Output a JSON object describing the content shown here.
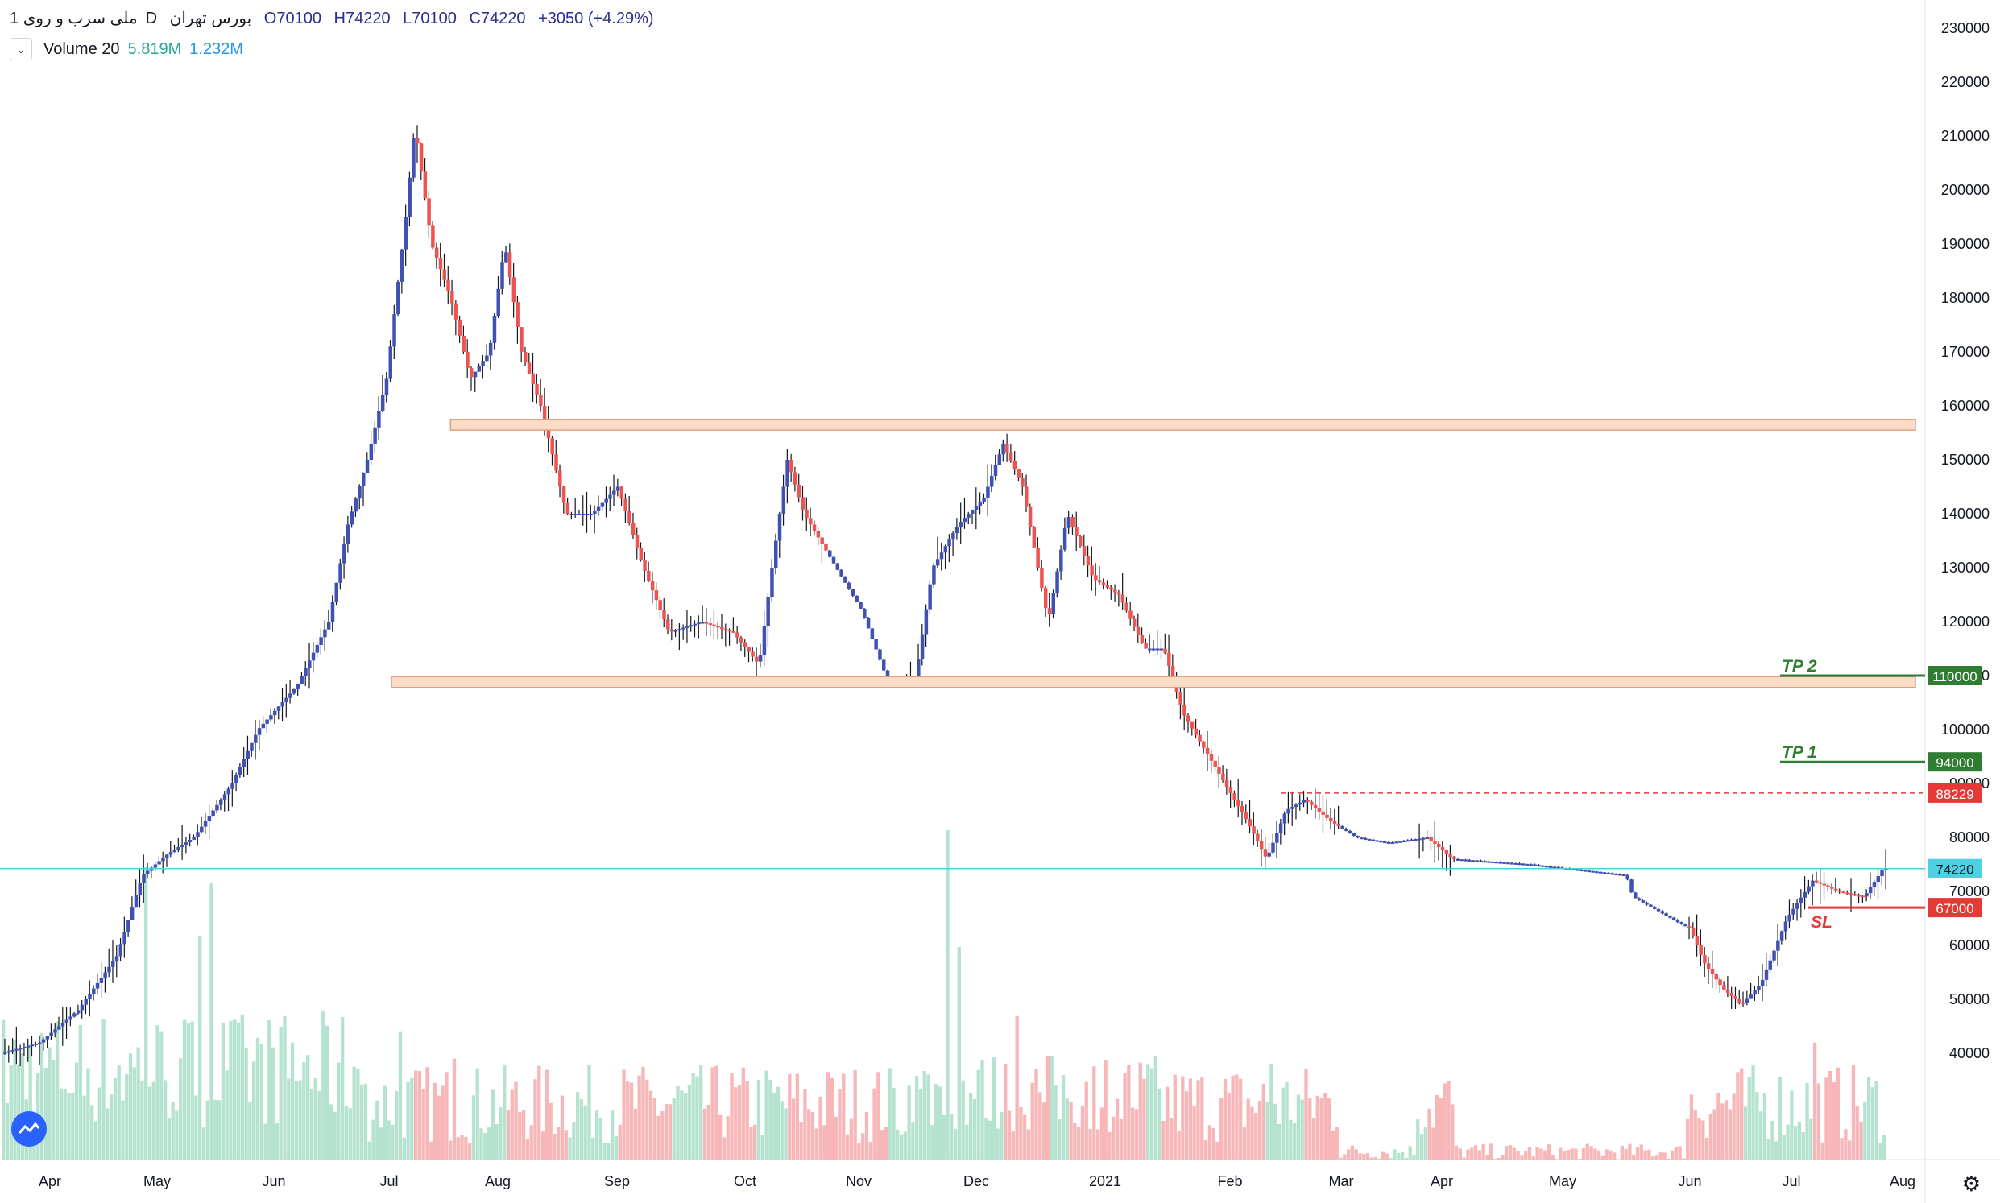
{
  "header": {
    "symbol": "ملی سرب و روی",
    "interval": "1D",
    "exchange": "بورس تهران",
    "open": "O70100",
    "high": "H74220",
    "low": "L70100",
    "close": "C74220",
    "change": "+3050 (+4.29%)",
    "volume_label": "Volume 20",
    "volume_value": "5.819M",
    "volume_ma": "1.232M"
  },
  "colors": {
    "up": "#ef5350",
    "down": "#3f51b5",
    "vol_up": "#f7b6b8",
    "vol_down": "#b5e3cf",
    "zone_fill": "#fbdcc6",
    "zone_stroke": "#e0a080",
    "tp": "#2e7d32",
    "sl": "#e53935",
    "current": "#4dd0e1"
  },
  "icons": {
    "collapse": "chevron-down-icon",
    "logo": "tradingview-logo-icon",
    "settings": "gear-icon"
  },
  "chart_data": {
    "type": "candlestick",
    "ylim": [
      37000,
      234000
    ],
    "y_ticks": [
      40000,
      50000,
      60000,
      70000,
      80000,
      90000,
      100000,
      110000,
      120000,
      130000,
      140000,
      150000,
      160000,
      170000,
      180000,
      190000,
      200000,
      210000,
      220000,
      230000
    ],
    "x_ticks": [
      "Apr",
      "May",
      "Jun",
      "Jul",
      "Aug",
      "Sep",
      "Oct",
      "Nov",
      "Dec",
      "2021",
      "Feb",
      "Mar",
      "Apr",
      "May",
      "Jun",
      "Jul",
      "Aug"
    ],
    "price_path": [
      [
        0,
        40000
      ],
      [
        30,
        42000
      ],
      [
        60,
        48000
      ],
      [
        90,
        58000
      ],
      [
        110,
        73000
      ],
      [
        130,
        77000
      ],
      [
        150,
        80000
      ],
      [
        180,
        90000
      ],
      [
        200,
        100000
      ],
      [
        230,
        108000
      ],
      [
        255,
        120000
      ],
      [
        270,
        138000
      ],
      [
        285,
        150000
      ],
      [
        300,
        165000
      ],
      [
        315,
        195000
      ],
      [
        322,
        212000
      ],
      [
        335,
        190000
      ],
      [
        350,
        180000
      ],
      [
        365,
        165000
      ],
      [
        380,
        170000
      ],
      [
        392,
        190000
      ],
      [
        405,
        170000
      ],
      [
        420,
        160000
      ],
      [
        440,
        140000
      ],
      [
        460,
        140000
      ],
      [
        480,
        145000
      ],
      [
        500,
        130000
      ],
      [
        520,
        118000
      ],
      [
        545,
        120000
      ],
      [
        570,
        118000
      ],
      [
        590,
        112000
      ],
      [
        600,
        130000
      ],
      [
        612,
        150000
      ],
      [
        625,
        140000
      ],
      [
        645,
        132000
      ],
      [
        670,
        122000
      ],
      [
        690,
        109000
      ],
      [
        712,
        110000
      ],
      [
        725,
        130000
      ],
      [
        745,
        138000
      ],
      [
        765,
        143000
      ],
      [
        780,
        153000
      ],
      [
        795,
        145000
      ],
      [
        815,
        120000
      ],
      [
        830,
        140000
      ],
      [
        850,
        128000
      ],
      [
        870,
        125000
      ],
      [
        890,
        115000
      ],
      [
        905,
        115000
      ],
      [
        920,
        103000
      ],
      [
        940,
        95000
      ],
      [
        955,
        89000
      ],
      [
        970,
        83000
      ],
      [
        985,
        76000
      ],
      [
        1000,
        85000
      ],
      [
        1015,
        87000
      ],
      [
        1035,
        83000
      ],
      [
        1055,
        80000
      ],
      [
        1080,
        79000
      ],
      [
        1110,
        80000
      ],
      [
        1130,
        76000
      ],
      [
        1190,
        75000
      ],
      [
        1265,
        73000
      ],
      [
        1270,
        69000
      ],
      [
        1315,
        63000
      ],
      [
        1325,
        57000
      ],
      [
        1340,
        52000
      ],
      [
        1355,
        49000
      ],
      [
        1370,
        53000
      ],
      [
        1390,
        65000
      ],
      [
        1410,
        72000
      ],
      [
        1430,
        70000
      ],
      [
        1450,
        69000
      ],
      [
        1465,
        74220
      ]
    ],
    "volume_spikes": [
      [
        110,
        55
      ],
      [
        152,
        42
      ],
      [
        162,
        52
      ],
      [
        308,
        24
      ],
      [
        350,
        19
      ],
      [
        735,
        62
      ],
      [
        745,
        40
      ],
      [
        790,
        27
      ],
      [
        988,
        18
      ],
      [
        1410,
        22
      ],
      [
        1467,
        33
      ]
    ],
    "zones": [
      {
        "y_low": 155500,
        "y_high": 157500,
        "x_start": 530
      },
      {
        "y_low": 107800,
        "y_high": 109800,
        "x_start": 484
      }
    ],
    "lines": [
      {
        "label": "TP 2",
        "value": 110000,
        "badge": "110000",
        "color": "#2e7d32"
      },
      {
        "label": "TP 1",
        "value": 94000,
        "badge": "94000",
        "color": "#2e7d32"
      },
      {
        "label": "SL",
        "value": 67000,
        "badge": "67000",
        "color": "#e53935"
      }
    ],
    "dashed_level": {
      "value": 88229,
      "badge": "88229",
      "color": "#e53935"
    },
    "current_price": {
      "value": 74220,
      "badge": "74220"
    }
  }
}
